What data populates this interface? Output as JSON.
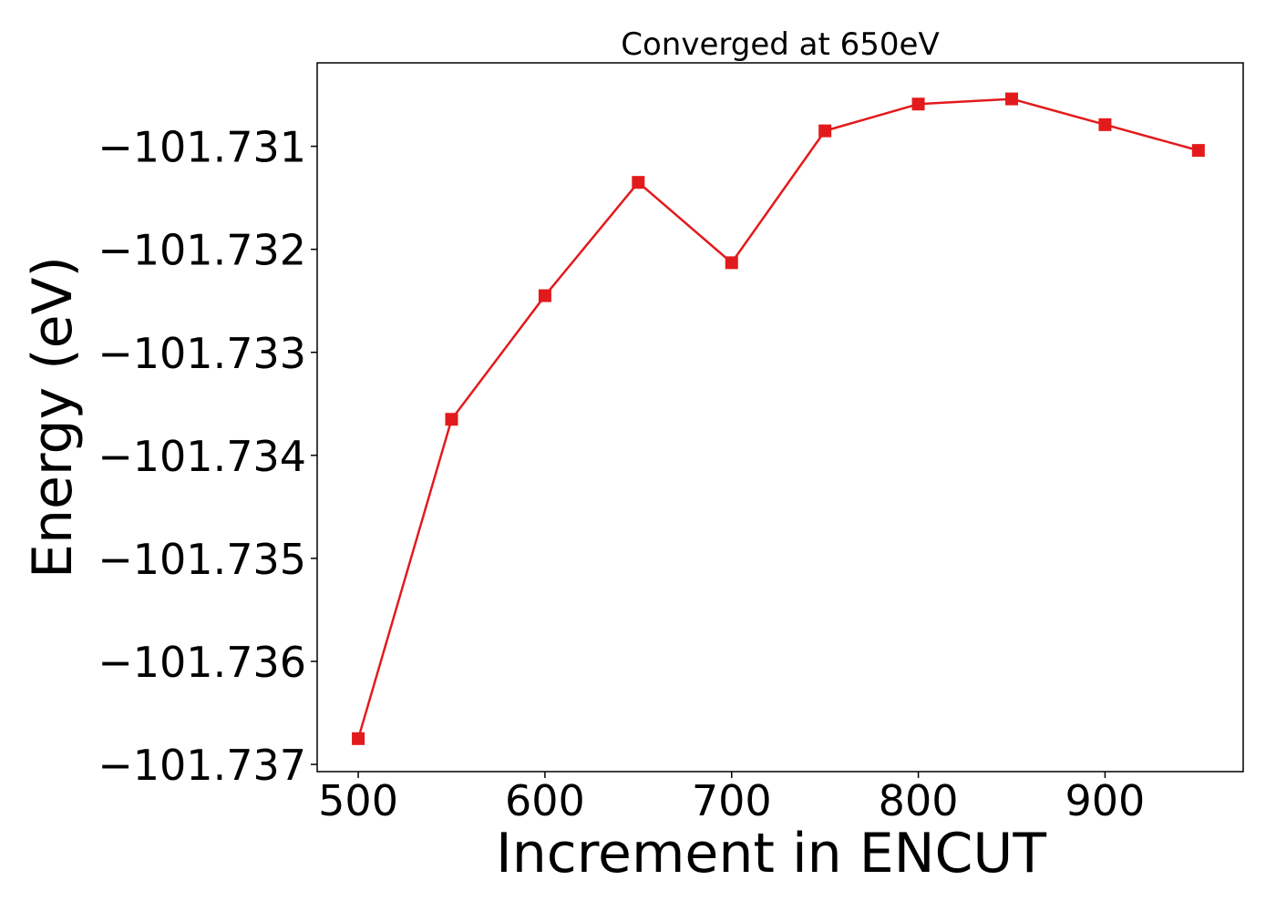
{
  "chart_data": {
    "type": "line",
    "title": "Converged at 650eV",
    "xlabel": "Increment in ENCUT",
    "ylabel": "Energy (eV)",
    "xlim": [
      478,
      974
    ],
    "ylim": [
      -101.73707,
      -101.73019
    ],
    "x_ticks": [
      500,
      600,
      700,
      800,
      900
    ],
    "y_ticks": [
      -101.731,
      -101.732,
      -101.733,
      -101.734,
      -101.735,
      -101.736,
      -101.737
    ],
    "y_tick_labels": [
      "−101.731",
      "−101.732",
      "−101.733",
      "−101.734",
      "−101.735",
      "−101.736",
      "−101.737"
    ],
    "grid": false,
    "legend": null,
    "series": [
      {
        "color": "#e31a1c",
        "marker": "square",
        "x": [
          500,
          550,
          600,
          650,
          700,
          750,
          800,
          850,
          900,
          950
        ],
        "y": [
          -101.73675,
          -101.73365,
          -101.73245,
          -101.73135,
          -101.73213,
          -101.73085,
          -101.73059,
          -101.73054,
          -101.73079,
          -101.73104
        ]
      }
    ]
  }
}
